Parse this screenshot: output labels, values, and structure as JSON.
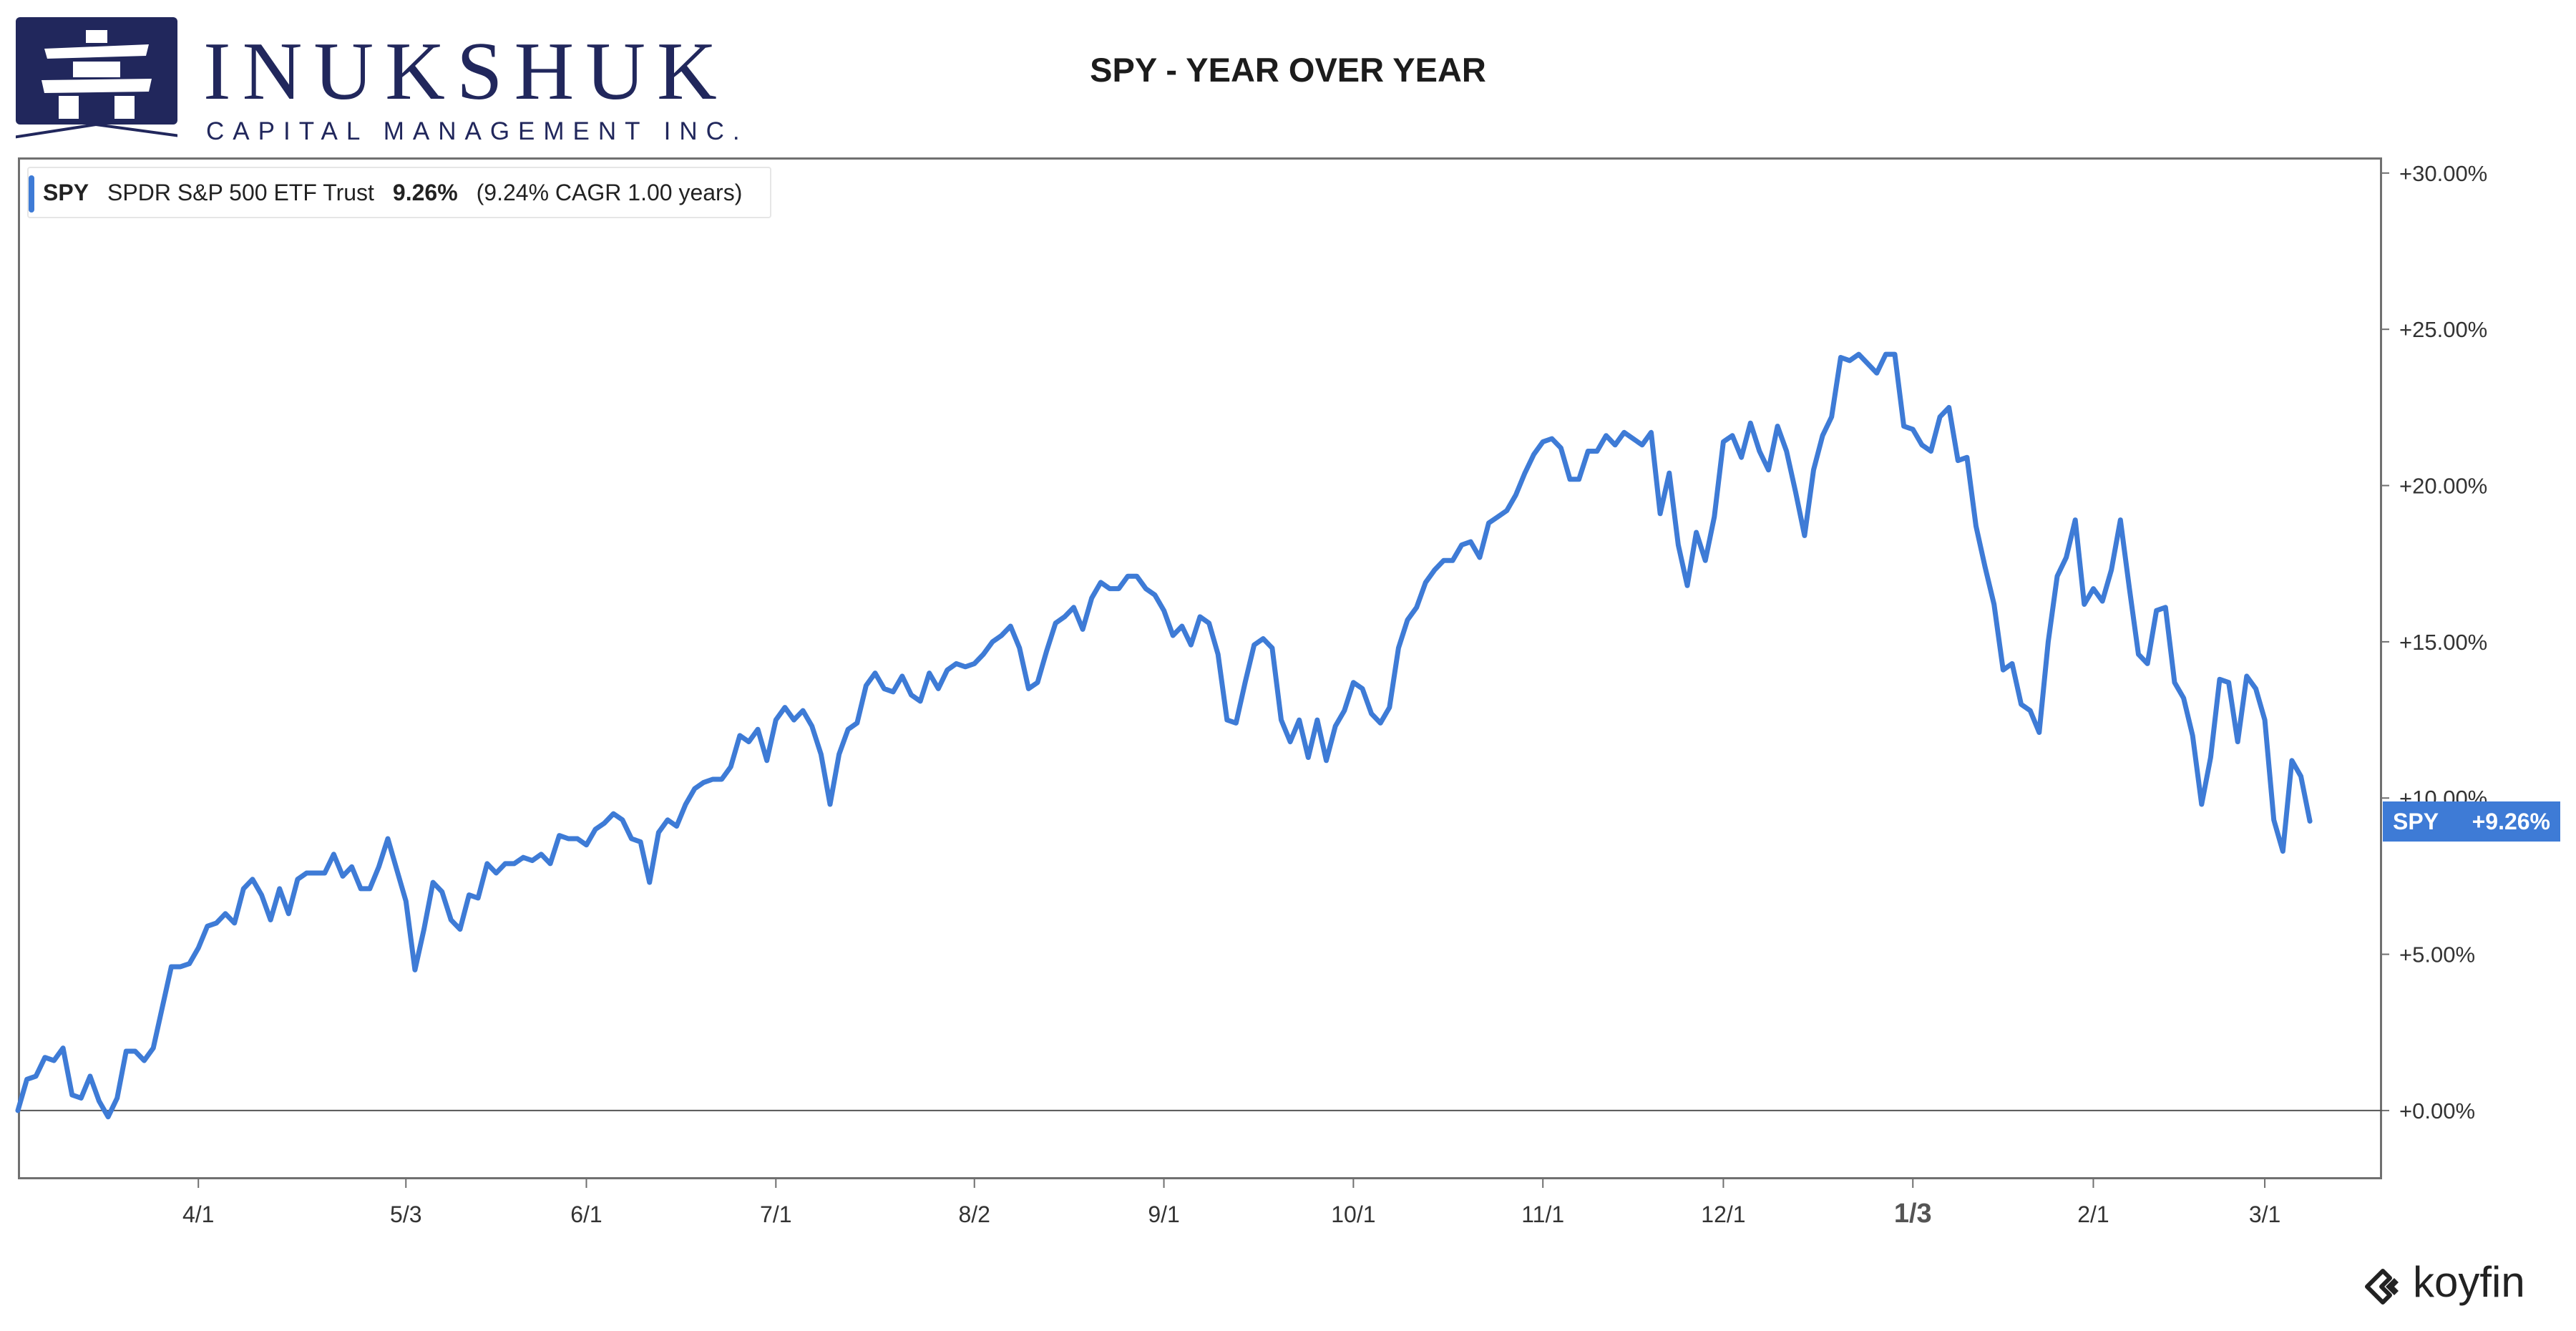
{
  "header": {
    "logo_word": "INUKSHUK",
    "logo_subtitle": "CAPITAL MANAGEMENT INC.",
    "logo_color": "#21275c"
  },
  "legend": {
    "symbol": "SPY",
    "name": "SPDR S&P 500 ETF Trust",
    "return": "9.26%",
    "detail": "(9.24% CAGR 1.00 years)"
  },
  "last_value": {
    "symbol": "SPY",
    "value": "+9.26%"
  },
  "brand": {
    "name": "koyfin"
  },
  "colors": {
    "line": "#3e7bd6",
    "axis": "#707070",
    "text": "#333333"
  },
  "chart_data": {
    "type": "line",
    "title": "SPY - YEAR OVER YEAR",
    "xlabel": "",
    "ylabel": "",
    "ylim": [
      -2.2,
      30.5
    ],
    "y_ticks": [
      0,
      5,
      10,
      15,
      20,
      25,
      30
    ],
    "y_tick_labels": [
      "+0.00%",
      "+5.00%",
      "+10.00%",
      "+15.00%",
      "+20.00%",
      "+25.00%",
      "+30.00%"
    ],
    "y_axis_position": "right",
    "grid": false,
    "legend_position": "top-left",
    "x_ticks": [
      {
        "label": "4/1",
        "index": 20
      },
      {
        "label": "5/3",
        "index": 43
      },
      {
        "label": "6/1",
        "index": 63
      },
      {
        "label": "7/1",
        "index": 84
      },
      {
        "label": "8/2",
        "index": 106
      },
      {
        "label": "9/1",
        "index": 127
      },
      {
        "label": "10/1",
        "index": 148
      },
      {
        "label": "11/1",
        "index": 169
      },
      {
        "label": "12/1",
        "index": 189
      },
      {
        "label": "1/3",
        "index": 210,
        "bold": true
      },
      {
        "label": "2/1",
        "index": 230
      },
      {
        "label": "3/1",
        "index": 249
      }
    ],
    "x_range": [
      0,
      262
    ],
    "series": [
      {
        "name": "SPY",
        "values": [
          0.0,
          1.0,
          1.1,
          1.7,
          1.6,
          2.0,
          0.5,
          0.4,
          1.1,
          0.3,
          -0.2,
          0.4,
          1.9,
          1.9,
          1.6,
          2.0,
          3.3,
          4.6,
          4.6,
          4.7,
          5.2,
          5.9,
          6.0,
          6.3,
          6.0,
          7.1,
          7.4,
          6.9,
          6.1,
          7.1,
          6.3,
          7.4,
          7.6,
          7.6,
          7.6,
          8.2,
          7.5,
          7.8,
          7.1,
          7.1,
          7.8,
          8.7,
          7.7,
          6.7,
          4.5,
          5.8,
          7.3,
          7.0,
          6.1,
          5.8,
          6.9,
          6.8,
          7.9,
          7.6,
          7.9,
          7.9,
          8.1,
          8.0,
          8.2,
          7.9,
          8.8,
          8.7,
          8.7,
          8.5,
          9.0,
          9.2,
          9.5,
          9.3,
          8.7,
          8.6,
          7.3,
          8.9,
          9.3,
          9.1,
          9.8,
          10.3,
          10.5,
          10.6,
          10.6,
          11.0,
          12.0,
          11.8,
          12.2,
          11.2,
          12.5,
          12.9,
          12.5,
          12.8,
          12.3,
          11.4,
          9.8,
          11.4,
          12.2,
          12.4,
          13.6,
          14.0,
          13.5,
          13.4,
          13.9,
          13.3,
          13.1,
          14.0,
          13.5,
          14.1,
          14.3,
          14.2,
          14.3,
          14.6,
          15.0,
          15.2,
          15.5,
          14.8,
          13.5,
          13.7,
          14.7,
          15.6,
          15.8,
          16.1,
          15.4,
          16.4,
          16.9,
          16.7,
          16.7,
          17.1,
          17.1,
          16.7,
          16.5,
          16.0,
          15.2,
          15.5,
          14.9,
          15.8,
          15.6,
          14.6,
          12.5,
          12.4,
          13.7,
          14.9,
          15.1,
          14.8,
          12.5,
          11.8,
          12.5,
          11.3,
          12.5,
          11.2,
          12.3,
          12.8,
          13.7,
          13.5,
          12.7,
          12.4,
          12.9,
          14.8,
          15.7,
          16.1,
          16.9,
          17.3,
          17.6,
          17.6,
          18.1,
          18.2,
          17.7,
          18.8,
          19.0,
          19.2,
          19.7,
          20.4,
          21.0,
          21.4,
          21.5,
          21.2,
          20.2,
          20.2,
          21.1,
          21.1,
          21.6,
          21.3,
          21.7,
          21.5,
          21.3,
          21.7,
          19.1,
          20.4,
          18.1,
          16.8,
          18.5,
          17.6,
          19.0,
          21.4,
          21.6,
          20.9,
          22.0,
          21.1,
          20.5,
          21.9,
          21.1,
          19.8,
          18.4,
          20.5,
          21.6,
          22.2,
          24.1,
          24.0,
          24.2,
          23.9,
          23.6,
          24.2,
          24.2,
          21.9,
          21.8,
          21.3,
          21.1,
          22.2,
          22.5,
          20.8,
          20.9,
          18.7,
          17.4,
          16.2,
          14.1,
          14.3,
          13.0,
          12.8,
          12.1,
          15.0,
          17.1,
          17.7,
          18.9,
          16.2,
          16.7,
          16.3,
          17.3,
          18.9,
          16.7,
          14.6,
          14.3,
          16.0,
          16.1,
          13.7,
          13.2,
          12.0,
          9.8,
          11.3,
          13.8,
          13.7,
          11.8,
          13.9,
          13.5,
          12.5,
          9.3,
          8.3,
          11.2,
          10.7,
          9.26
        ]
      }
    ]
  }
}
